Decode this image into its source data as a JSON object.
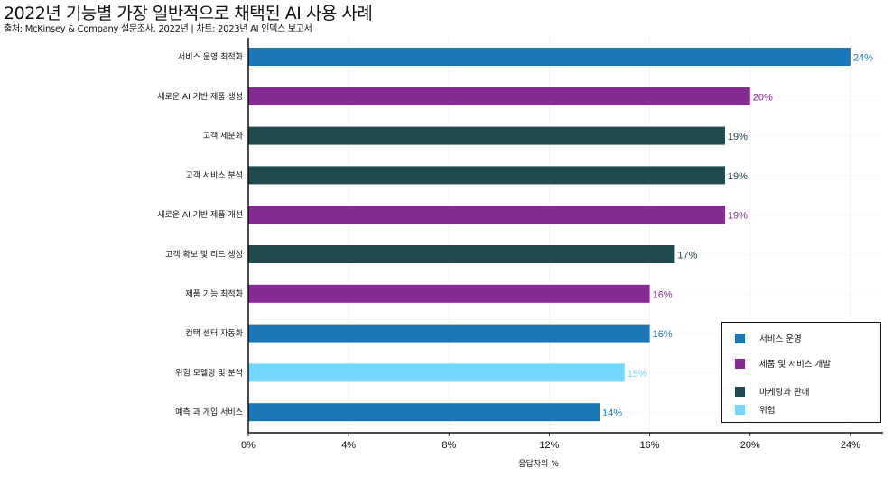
{
  "title": "2022년 기능별 가장 일반적으로 채택된 AI 사용 사례",
  "subtitle": "출처: McKinsey & Company 설문조사, 2022년 | 차트: 2023년 AI 인덱스 보고서",
  "chart_data": {
    "type": "bar",
    "orientation": "horizontal",
    "categories": [
      "서비스 운영 최적화",
      "새로운 AI 기반 제품 생성",
      "고객 세분화",
      "고객 서비스 분석",
      "새로운 AI 기반 제품 개선",
      "고객 확보 및 리드 생성",
      "제품 기능 최적화",
      "컨택 센터 자동화",
      "위험 모델링 및 분석",
      "예측 과 개입 서비스"
    ],
    "values": [
      24,
      20,
      19,
      19,
      19,
      17,
      16,
      16,
      15,
      14
    ],
    "groups": [
      "서비스 운영",
      "제품 및 서비스 개발",
      "마케팅과 판매",
      "마케팅과 판매",
      "제품 및 서비스 개발",
      "마케팅과 판매",
      "제품 및 서비스 개발",
      "서비스 운영",
      "위험",
      "서비스 운영"
    ],
    "data_labels": [
      "24%",
      "20%",
      "19%",
      "19%",
      "19%",
      "17%",
      "16%",
      "16%",
      "15%",
      "14%"
    ],
    "xlabel": "응답자의 %",
    "ylabel": "",
    "xlim": [
      0,
      25.3
    ],
    "xticks": [
      0,
      4,
      8,
      12,
      16,
      20,
      24
    ],
    "xtick_labels": [
      "0%",
      "4%",
      "8%",
      "12%",
      "16%",
      "20%",
      "24%"
    ],
    "grid": true,
    "legend": {
      "placement": "bottom-right",
      "entries": [
        {
          "name": "서비스 운영",
          "color": "#1b78b8"
        },
        {
          "name": "제품 및 서비스 개발",
          "color": "#862a94"
        },
        {
          "name": "마케팅과 판매",
          "color": "#1e4a50"
        },
        {
          "name": "위험",
          "color": "#72d8fb"
        }
      ]
    }
  }
}
